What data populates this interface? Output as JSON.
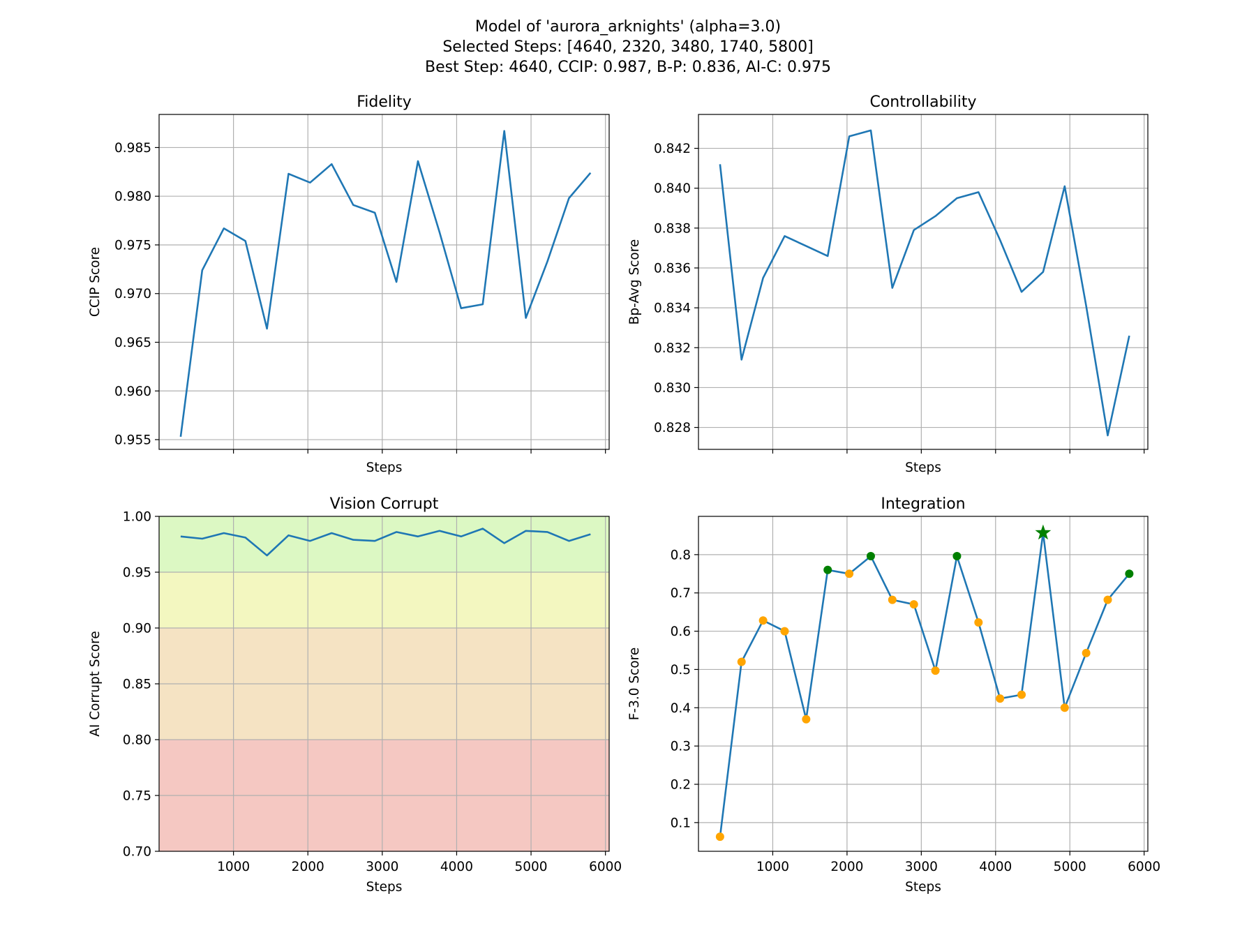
{
  "figure": {
    "title_lines": [
      "Model of 'aurora_arknights' (alpha=3.0)",
      "Selected Steps: [4640, 2320, 3480, 1740, 5800]",
      "Best Step: 4640, CCIP: 0.987, B-P: 0.836, AI-C: 0.975"
    ]
  },
  "chart_data": [
    {
      "id": "fidelity",
      "type": "line",
      "title": "Fidelity",
      "xlabel": "Steps",
      "ylabel": "CCIP Score",
      "x_tick_labels_visible": false,
      "xlim": [
        0,
        6050
      ],
      "ylim": [
        0.954,
        0.9884
      ],
      "xticks": [
        1000,
        2000,
        3000,
        4000,
        5000,
        6000
      ],
      "yticks": [
        0.955,
        0.96,
        0.965,
        0.97,
        0.975,
        0.98,
        0.985
      ],
      "ytick_labels": [
        "0.955",
        "0.960",
        "0.965",
        "0.970",
        "0.975",
        "0.980",
        "0.985"
      ],
      "grid": true,
      "color": "#1f77b4",
      "series": [
        {
          "x": [
            290,
            580,
            870,
            1160,
            1450,
            1740,
            2030,
            2320,
            2610,
            2900,
            3190,
            3480,
            3770,
            4060,
            4350,
            4640,
            4930,
            5220,
            5510,
            5800
          ],
          "y": [
            0.9553,
            0.9724,
            0.9767,
            0.9754,
            0.9664,
            0.9823,
            0.9814,
            0.9833,
            0.9791,
            0.9783,
            0.9712,
            0.9836,
            0.9763,
            0.9685,
            0.9689,
            0.9867,
            0.9675,
            0.9733,
            0.9798,
            0.9824
          ]
        }
      ]
    },
    {
      "id": "controllability",
      "type": "line",
      "title": "Controllability",
      "xlabel": "Steps",
      "ylabel": "Bp-Avg Score",
      "x_tick_labels_visible": false,
      "xlim": [
        0,
        6050
      ],
      "ylim": [
        0.8269,
        0.8437
      ],
      "xticks": [
        1000,
        2000,
        3000,
        4000,
        5000,
        6000
      ],
      "yticks": [
        0.828,
        0.83,
        0.832,
        0.834,
        0.836,
        0.838,
        0.84,
        0.842
      ],
      "ytick_labels": [
        "0.828",
        "0.830",
        "0.832",
        "0.834",
        "0.836",
        "0.838",
        "0.840",
        "0.842"
      ],
      "grid": true,
      "color": "#1f77b4",
      "series": [
        {
          "x": [
            290,
            580,
            870,
            1160,
            1450,
            1740,
            2030,
            2320,
            2610,
            2900,
            3190,
            3480,
            3770,
            4060,
            4350,
            4640,
            4930,
            5220,
            5510,
            5800
          ],
          "y": [
            0.8412,
            0.8314,
            0.8355,
            0.8376,
            0.8371,
            0.8366,
            0.8426,
            0.8429,
            0.835,
            0.8379,
            0.8386,
            0.8395,
            0.8398,
            0.8374,
            0.8348,
            0.8358,
            0.8401,
            0.8341,
            0.8276,
            0.8326
          ]
        }
      ]
    },
    {
      "id": "vision-corrupt",
      "type": "line",
      "title": "Vision Corrupt",
      "xlabel": "Steps",
      "ylabel": "AI Corrupt Score",
      "x_tick_labels_visible": true,
      "xlim": [
        0,
        6050
      ],
      "ylim": [
        0.7,
        1.0
      ],
      "xticks": [
        1000,
        2000,
        3000,
        4000,
        5000,
        6000
      ],
      "xtick_labels": [
        "1000",
        "2000",
        "3000",
        "4000",
        "5000",
        "6000"
      ],
      "yticks": [
        0.7,
        0.75,
        0.8,
        0.85,
        0.9,
        0.95,
        1.0
      ],
      "ytick_labels": [
        "0.70",
        "0.75",
        "0.80",
        "0.85",
        "0.90",
        "0.95",
        "1.00"
      ],
      "grid": true,
      "color": "#1f77b4",
      "bands": [
        {
          "from": 0.95,
          "to": 1.0,
          "color": "#dcf8c3"
        },
        {
          "from": 0.9,
          "to": 0.95,
          "color": "#f3f7c0"
        },
        {
          "from": 0.8,
          "to": 0.9,
          "color": "#f5e3c3"
        },
        {
          "from": 0.7,
          "to": 0.8,
          "color": "#f5c8c2"
        }
      ],
      "series": [
        {
          "x": [
            290,
            580,
            870,
            1160,
            1450,
            1740,
            2030,
            2320,
            2610,
            2900,
            3190,
            3480,
            3770,
            4060,
            4350,
            4640,
            4930,
            5220,
            5510,
            5800
          ],
          "y": [
            0.982,
            0.98,
            0.985,
            0.981,
            0.965,
            0.983,
            0.978,
            0.985,
            0.979,
            0.978,
            0.986,
            0.982,
            0.987,
            0.982,
            0.989,
            0.976,
            0.987,
            0.986,
            0.978,
            0.984
          ]
        }
      ]
    },
    {
      "id": "integration",
      "type": "line",
      "title": "Integration",
      "xlabel": "Steps",
      "ylabel": "F-3.0 Score",
      "x_tick_labels_visible": true,
      "xlim": [
        0,
        6050
      ],
      "ylim": [
        0.025,
        0.9
      ],
      "xticks": [
        1000,
        2000,
        3000,
        4000,
        5000,
        6000
      ],
      "xtick_labels": [
        "1000",
        "2000",
        "3000",
        "4000",
        "5000",
        "6000"
      ],
      "yticks": [
        0.1,
        0.2,
        0.3,
        0.4,
        0.5,
        0.6,
        0.7,
        0.8
      ],
      "ytick_labels": [
        "0.1",
        "0.2",
        "0.3",
        "0.4",
        "0.5",
        "0.6",
        "0.7",
        "0.8"
      ],
      "grid": true,
      "color": "#1f77b4",
      "marker_colors": {
        "default": "#ffa500",
        "selected": "#008000",
        "best": "#008000"
      },
      "series": [
        {
          "x": [
            290,
            580,
            870,
            1160,
            1450,
            1740,
            2030,
            2320,
            2610,
            2900,
            3190,
            3480,
            3770,
            4060,
            4350,
            4640,
            4930,
            5220,
            5510,
            5800
          ],
          "y": [
            0.063,
            0.52,
            0.628,
            0.6,
            0.37,
            0.76,
            0.75,
            0.796,
            0.682,
            0.67,
            0.497,
            0.796,
            0.623,
            0.424,
            0.434,
            0.857,
            0.4,
            0.543,
            0.682,
            0.75
          ]
        }
      ],
      "selected_steps": [
        4640,
        2320,
        3480,
        1740,
        5800
      ],
      "best_step": 4640
    }
  ]
}
